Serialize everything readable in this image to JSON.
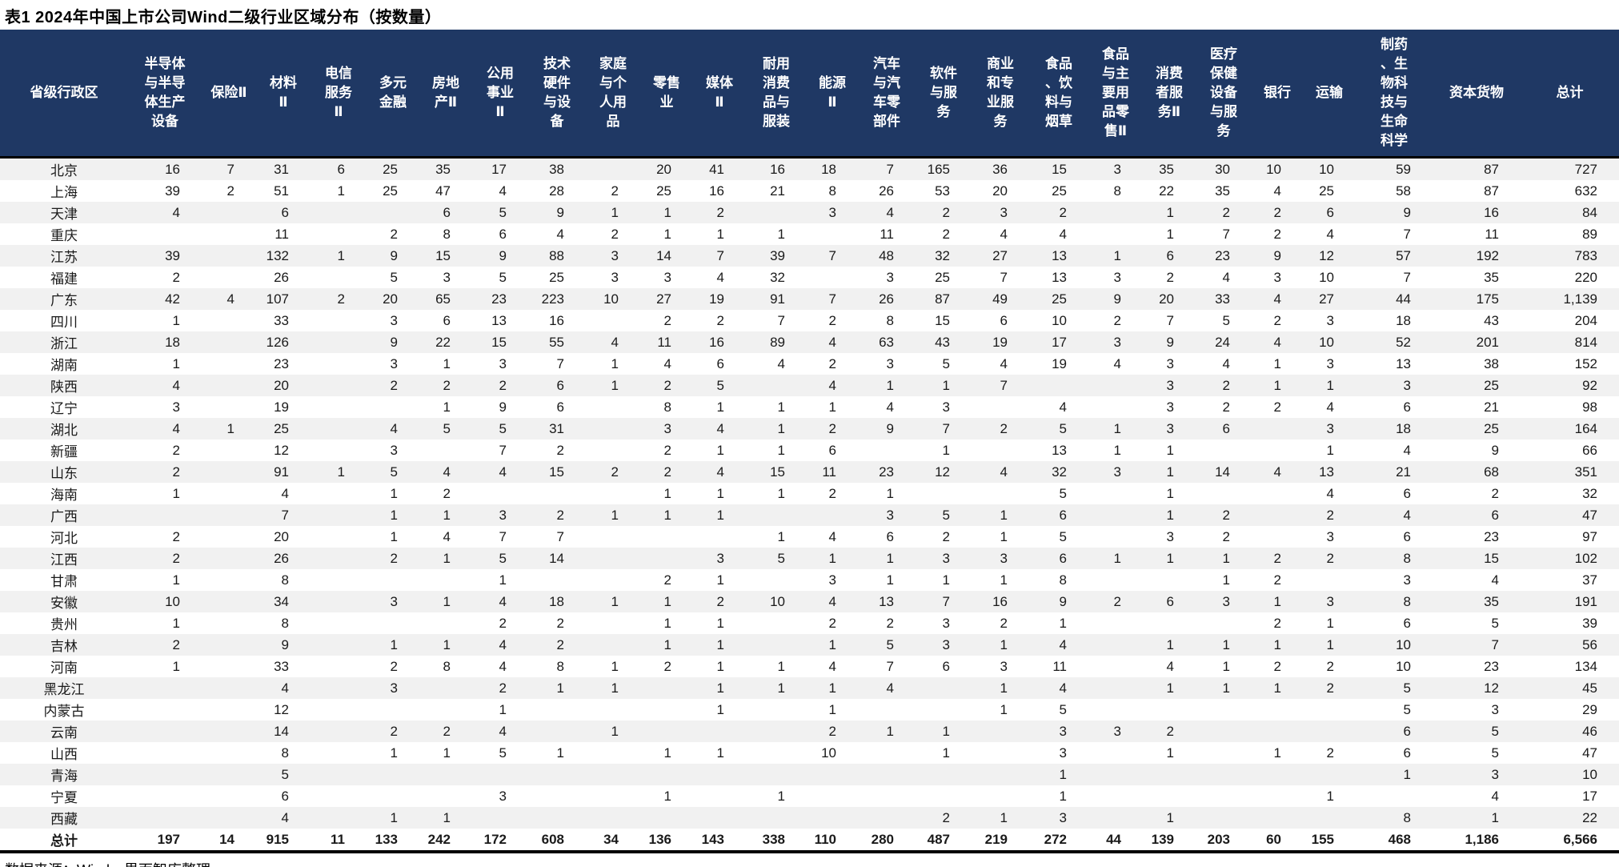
{
  "title": "表1 2024年中国上市公司Wind二级行业区域分布（按数量）",
  "source_note": "数据来源：Wind，界面智库整理",
  "colors": {
    "header_bg": "#1F3864",
    "header_text": "#FFFFFF",
    "zebra_row": "#F1F1F1",
    "border": "#000000",
    "body_text": "#1A1A1A"
  },
  "table": {
    "province_header": "省级行政区",
    "columns": [
      {
        "label": "半导体与半导体生产设备",
        "lines": [
          "半导体",
          "与半导",
          "体生产",
          "设备"
        ]
      },
      {
        "label": "保险Ⅱ",
        "lines": [
          "保险Ⅱ"
        ]
      },
      {
        "label": "材料Ⅱ",
        "lines": [
          "材料",
          "Ⅱ"
        ]
      },
      {
        "label": "电信服务Ⅱ",
        "lines": [
          "电信",
          "服务",
          "Ⅱ"
        ]
      },
      {
        "label": "多元金融",
        "lines": [
          "多元",
          "金融"
        ]
      },
      {
        "label": "房地产Ⅱ",
        "lines": [
          "房地",
          "产Ⅱ"
        ]
      },
      {
        "label": "公用事业Ⅱ",
        "lines": [
          "公用",
          "事业",
          "Ⅱ"
        ]
      },
      {
        "label": "技术硬件与设备",
        "lines": [
          "技术",
          "硬件",
          "与设",
          "备"
        ]
      },
      {
        "label": "家庭与个人用品",
        "lines": [
          "家庭",
          "与个",
          "人用",
          "品"
        ]
      },
      {
        "label": "零售业",
        "lines": [
          "零售",
          "业"
        ]
      },
      {
        "label": "媒体Ⅱ",
        "lines": [
          "媒体",
          "Ⅱ"
        ]
      },
      {
        "label": "耐用消费品与服装",
        "lines": [
          "耐用",
          "消费",
          "品与",
          "服装"
        ]
      },
      {
        "label": "能源Ⅱ",
        "lines": [
          "能源",
          "Ⅱ"
        ]
      },
      {
        "label": "汽车与汽车零部件",
        "lines": [
          "汽车",
          "与汽",
          "车零",
          "部件"
        ]
      },
      {
        "label": "软件与服务",
        "lines": [
          "软件",
          "与服",
          "务"
        ]
      },
      {
        "label": "商业和专业服务",
        "lines": [
          "商业",
          "和专",
          "业服",
          "务"
        ]
      },
      {
        "label": "食品、饮料与烟草",
        "lines": [
          "食品",
          "、饮",
          "料与",
          "烟草"
        ]
      },
      {
        "label": "食品与主要用品零售Ⅱ",
        "lines": [
          "食品",
          "与主",
          "要用",
          "品零",
          "售Ⅱ"
        ]
      },
      {
        "label": "消费者服务Ⅱ",
        "lines": [
          "消费",
          "者服",
          "务Ⅱ"
        ]
      },
      {
        "label": "医疗保健设备与服务",
        "lines": [
          "医疗",
          "保健",
          "设备",
          "与服",
          "务"
        ]
      },
      {
        "label": "银行",
        "lines": [
          "银行"
        ]
      },
      {
        "label": "运输",
        "lines": [
          "运输"
        ]
      },
      {
        "label": "制药、生物科技与生命科学",
        "lines": [
          "制药",
          "、生",
          "物科",
          "技与",
          "生命",
          "科学"
        ]
      },
      {
        "label": "资本货物",
        "lines": [
          "资本货物"
        ]
      },
      {
        "label": "总计",
        "lines": [
          "总计"
        ]
      }
    ],
    "rows": [
      {
        "province": "北京",
        "values": [
          16,
          7,
          31,
          6,
          25,
          35,
          17,
          38,
          "",
          20,
          41,
          16,
          18,
          7,
          165,
          36,
          15,
          3,
          35,
          30,
          10,
          10,
          59,
          87,
          727
        ]
      },
      {
        "province": "上海",
        "values": [
          39,
          2,
          51,
          1,
          25,
          47,
          4,
          28,
          2,
          25,
          16,
          21,
          8,
          26,
          53,
          20,
          25,
          8,
          22,
          35,
          4,
          25,
          58,
          87,
          632
        ]
      },
      {
        "province": "天津",
        "values": [
          4,
          "",
          6,
          "",
          "",
          6,
          5,
          9,
          1,
          1,
          2,
          "",
          3,
          4,
          2,
          3,
          2,
          "",
          1,
          2,
          2,
          6,
          9,
          16,
          84
        ]
      },
      {
        "province": "重庆",
        "values": [
          "",
          "",
          11,
          "",
          2,
          8,
          6,
          4,
          2,
          1,
          1,
          1,
          "",
          11,
          2,
          4,
          4,
          "",
          1,
          7,
          2,
          4,
          7,
          11,
          89
        ]
      },
      {
        "province": "江苏",
        "values": [
          39,
          "",
          132,
          1,
          9,
          15,
          9,
          88,
          3,
          14,
          7,
          39,
          7,
          48,
          32,
          27,
          13,
          1,
          6,
          23,
          9,
          12,
          57,
          192,
          783
        ]
      },
      {
        "province": "福建",
        "values": [
          2,
          "",
          26,
          "",
          5,
          3,
          5,
          25,
          3,
          3,
          4,
          32,
          "",
          3,
          25,
          7,
          13,
          3,
          2,
          4,
          3,
          10,
          7,
          35,
          220
        ]
      },
      {
        "province": "广东",
        "values": [
          42,
          4,
          107,
          2,
          20,
          65,
          23,
          223,
          10,
          27,
          19,
          91,
          7,
          26,
          87,
          49,
          25,
          9,
          20,
          33,
          4,
          27,
          44,
          175,
          "1,139"
        ]
      },
      {
        "province": "四川",
        "values": [
          1,
          "",
          33,
          "",
          3,
          6,
          13,
          16,
          "",
          2,
          2,
          7,
          2,
          8,
          15,
          6,
          10,
          2,
          7,
          5,
          2,
          3,
          18,
          43,
          204
        ]
      },
      {
        "province": "浙江",
        "values": [
          18,
          "",
          126,
          "",
          9,
          22,
          15,
          55,
          4,
          11,
          16,
          89,
          4,
          63,
          43,
          19,
          17,
          3,
          9,
          24,
          4,
          10,
          52,
          201,
          814
        ]
      },
      {
        "province": "湖南",
        "values": [
          1,
          "",
          23,
          "",
          3,
          1,
          3,
          7,
          1,
          4,
          6,
          4,
          2,
          3,
          5,
          4,
          19,
          4,
          3,
          4,
          1,
          3,
          13,
          38,
          152
        ]
      },
      {
        "province": "陕西",
        "values": [
          4,
          "",
          20,
          "",
          2,
          2,
          2,
          6,
          1,
          2,
          5,
          "",
          4,
          1,
          1,
          7,
          "",
          "",
          3,
          2,
          1,
          1,
          3,
          25,
          92
        ]
      },
      {
        "province": "辽宁",
        "values": [
          3,
          "",
          19,
          "",
          "",
          1,
          9,
          6,
          "",
          8,
          1,
          1,
          1,
          4,
          3,
          "",
          4,
          "",
          3,
          2,
          2,
          4,
          6,
          21,
          98
        ]
      },
      {
        "province": "湖北",
        "values": [
          4,
          1,
          25,
          "",
          4,
          5,
          5,
          31,
          "",
          3,
          4,
          1,
          2,
          9,
          7,
          2,
          5,
          1,
          3,
          6,
          "",
          3,
          18,
          25,
          164
        ]
      },
      {
        "province": "新疆",
        "values": [
          2,
          "",
          12,
          "",
          3,
          "",
          7,
          2,
          "",
          2,
          1,
          1,
          6,
          "",
          1,
          "",
          13,
          1,
          1,
          "",
          "",
          1,
          4,
          9,
          66
        ]
      },
      {
        "province": "山东",
        "values": [
          2,
          "",
          91,
          1,
          5,
          4,
          4,
          15,
          2,
          2,
          4,
          15,
          11,
          23,
          12,
          4,
          32,
          3,
          1,
          14,
          4,
          13,
          21,
          68,
          351
        ]
      },
      {
        "province": "海南",
        "values": [
          1,
          "",
          4,
          "",
          1,
          2,
          "",
          "",
          "",
          1,
          1,
          1,
          2,
          1,
          "",
          "",
          5,
          "",
          1,
          "",
          "",
          4,
          6,
          2,
          32
        ]
      },
      {
        "province": "广西",
        "values": [
          "",
          "",
          7,
          "",
          1,
          1,
          3,
          2,
          1,
          1,
          1,
          "",
          "",
          3,
          5,
          1,
          6,
          "",
          1,
          2,
          "",
          2,
          4,
          6,
          47
        ]
      },
      {
        "province": "河北",
        "values": [
          2,
          "",
          20,
          "",
          1,
          4,
          7,
          7,
          "",
          "",
          "",
          1,
          4,
          6,
          2,
          1,
          5,
          "",
          3,
          2,
          "",
          3,
          6,
          23,
          97
        ]
      },
      {
        "province": "江西",
        "values": [
          2,
          "",
          26,
          "",
          2,
          1,
          5,
          14,
          "",
          "",
          3,
          5,
          1,
          1,
          3,
          3,
          6,
          1,
          1,
          1,
          2,
          2,
          8,
          15,
          102
        ]
      },
      {
        "province": "甘肃",
        "values": [
          1,
          "",
          8,
          "",
          "",
          "",
          1,
          "",
          "",
          2,
          1,
          "",
          3,
          1,
          1,
          1,
          8,
          "",
          "",
          1,
          2,
          "",
          3,
          4,
          37
        ]
      },
      {
        "province": "安徽",
        "values": [
          10,
          "",
          34,
          "",
          3,
          1,
          4,
          18,
          1,
          1,
          2,
          10,
          4,
          13,
          7,
          16,
          9,
          2,
          6,
          3,
          1,
          3,
          8,
          35,
          191
        ]
      },
      {
        "province": "贵州",
        "values": [
          1,
          "",
          8,
          "",
          "",
          "",
          2,
          2,
          "",
          1,
          1,
          "",
          2,
          2,
          3,
          2,
          1,
          "",
          "",
          "",
          2,
          1,
          6,
          5,
          39
        ]
      },
      {
        "province": "吉林",
        "values": [
          2,
          "",
          9,
          "",
          1,
          1,
          4,
          2,
          "",
          1,
          1,
          "",
          1,
          5,
          3,
          1,
          4,
          "",
          1,
          1,
          1,
          1,
          10,
          7,
          56
        ]
      },
      {
        "province": "河南",
        "values": [
          1,
          "",
          33,
          "",
          2,
          8,
          4,
          8,
          1,
          2,
          1,
          1,
          4,
          7,
          6,
          3,
          11,
          "",
          4,
          1,
          2,
          2,
          10,
          23,
          134
        ]
      },
      {
        "province": "黑龙江",
        "values": [
          "",
          "",
          4,
          "",
          3,
          "",
          2,
          1,
          1,
          "",
          1,
          1,
          1,
          4,
          "",
          1,
          4,
          "",
          1,
          1,
          1,
          2,
          5,
          12,
          45
        ]
      },
      {
        "province": "内蒙古",
        "values": [
          "",
          "",
          12,
          "",
          "",
          "",
          1,
          "",
          "",
          "",
          1,
          "",
          1,
          "",
          "",
          1,
          5,
          "",
          "",
          "",
          "",
          "",
          5,
          3,
          29
        ]
      },
      {
        "province": "云南",
        "values": [
          "",
          "",
          14,
          "",
          2,
          2,
          4,
          "",
          1,
          "",
          "",
          "",
          2,
          1,
          1,
          "",
          3,
          3,
          2,
          "",
          "",
          "",
          6,
          5,
          46
        ]
      },
      {
        "province": "山西",
        "values": [
          "",
          "",
          8,
          "",
          1,
          1,
          5,
          1,
          "",
          1,
          1,
          "",
          10,
          "",
          1,
          "",
          3,
          "",
          1,
          "",
          1,
          2,
          6,
          5,
          47
        ]
      },
      {
        "province": "青海",
        "values": [
          "",
          "",
          5,
          "",
          "",
          "",
          "",
          "",
          "",
          "",
          "",
          "",
          "",
          "",
          "",
          "",
          1,
          "",
          "",
          "",
          "",
          "",
          1,
          3,
          10
        ]
      },
      {
        "province": "宁夏",
        "values": [
          "",
          "",
          6,
          "",
          "",
          "",
          3,
          "",
          "",
          1,
          "",
          1,
          "",
          "",
          "",
          "",
          1,
          "",
          "",
          "",
          "",
          1,
          "",
          4,
          17
        ]
      },
      {
        "province": "西藏",
        "values": [
          "",
          "",
          4,
          "",
          1,
          1,
          "",
          "",
          "",
          "",
          "",
          "",
          "",
          "",
          2,
          1,
          3,
          "",
          1,
          "",
          "",
          "",
          8,
          1,
          22
        ]
      }
    ],
    "total_row": {
      "province": "总计",
      "values": [
        197,
        14,
        915,
        11,
        133,
        242,
        172,
        608,
        34,
        136,
        143,
        338,
        110,
        280,
        487,
        219,
        272,
        44,
        139,
        203,
        60,
        155,
        468,
        "1,186",
        "6,566"
      ]
    }
  }
}
